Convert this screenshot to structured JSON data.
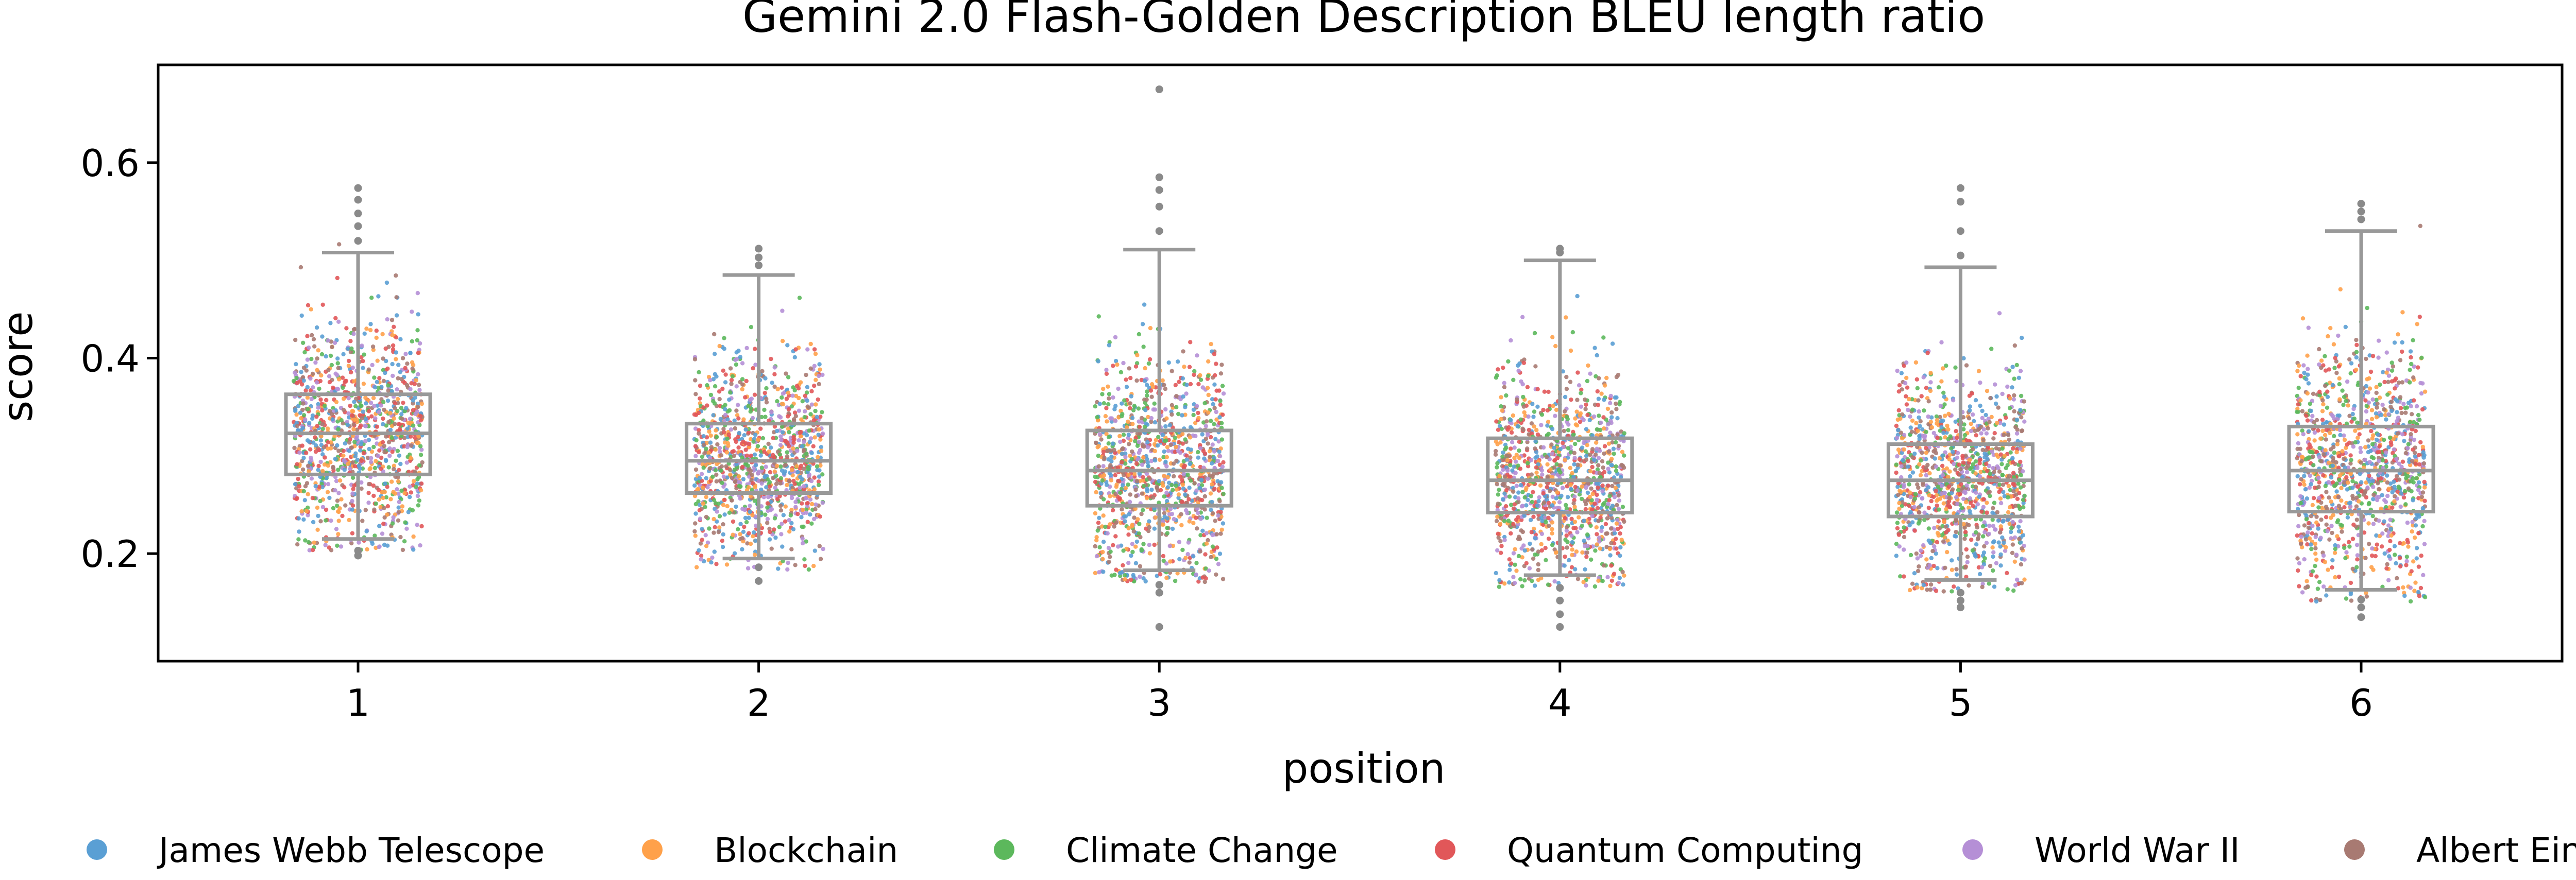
{
  "chart_data": {
    "type": "box-strip",
    "title": "Gemini 2.0 Flash-Golden Description BLEU length ratio",
    "xlabel": "position",
    "ylabel": "score",
    "ylim": [
      0.09,
      0.7
    ],
    "yticks": [
      0.2,
      0.4,
      0.6
    ],
    "ytick_labels": [
      "0.2",
      "0.4",
      "0.6"
    ],
    "categories": [
      "1",
      "2",
      "3",
      "4",
      "5",
      "6"
    ],
    "grid": false,
    "legend_position": "bottom",
    "box_color": "#999999",
    "boxes": [
      {
        "category": "1",
        "whisker_low": 0.215,
        "q1": 0.281,
        "median": 0.323,
        "q3": 0.363,
        "whisker_high": 0.508,
        "outliers": [
          0.52,
          0.535,
          0.548,
          0.562,
          0.574,
          0.203,
          0.198
        ]
      },
      {
        "category": "2",
        "whisker_low": 0.195,
        "q1": 0.262,
        "median": 0.295,
        "q3": 0.333,
        "whisker_high": 0.485,
        "outliers": [
          0.495,
          0.503,
          0.512,
          0.186,
          0.172
        ]
      },
      {
        "category": "3",
        "whisker_low": 0.183,
        "q1": 0.249,
        "median": 0.285,
        "q3": 0.326,
        "whisker_high": 0.511,
        "outliers": [
          0.53,
          0.555,
          0.572,
          0.585,
          0.675,
          0.168,
          0.16,
          0.125
        ]
      },
      {
        "category": "4",
        "whisker_low": 0.178,
        "q1": 0.242,
        "median": 0.275,
        "q3": 0.318,
        "whisker_high": 0.5,
        "outliers": [
          0.508,
          0.512,
          0.165,
          0.152,
          0.138,
          0.125
        ]
      },
      {
        "category": "5",
        "whisker_low": 0.173,
        "q1": 0.238,
        "median": 0.275,
        "q3": 0.312,
        "whisker_high": 0.493,
        "outliers": [
          0.505,
          0.53,
          0.56,
          0.574,
          0.16,
          0.152,
          0.145
        ]
      },
      {
        "category": "6",
        "whisker_low": 0.163,
        "q1": 0.243,
        "median": 0.285,
        "q3": 0.33,
        "whisker_high": 0.53,
        "outliers": [
          0.542,
          0.55,
          0.558,
          0.153,
          0.145,
          0.135
        ]
      }
    ],
    "series": [
      {
        "name": "James Webb Telescope",
        "color": "#5a9fd4"
      },
      {
        "name": "Blockchain",
        "color": "#ffa14a"
      },
      {
        "name": "Climate Change",
        "color": "#5cb85c"
      },
      {
        "name": "Quantum Computing",
        "color": "#e15759"
      },
      {
        "name": "World War II",
        "color": "#b58fd6"
      },
      {
        "name": "Albert Einstein",
        "color": "#a87a72"
      }
    ]
  }
}
